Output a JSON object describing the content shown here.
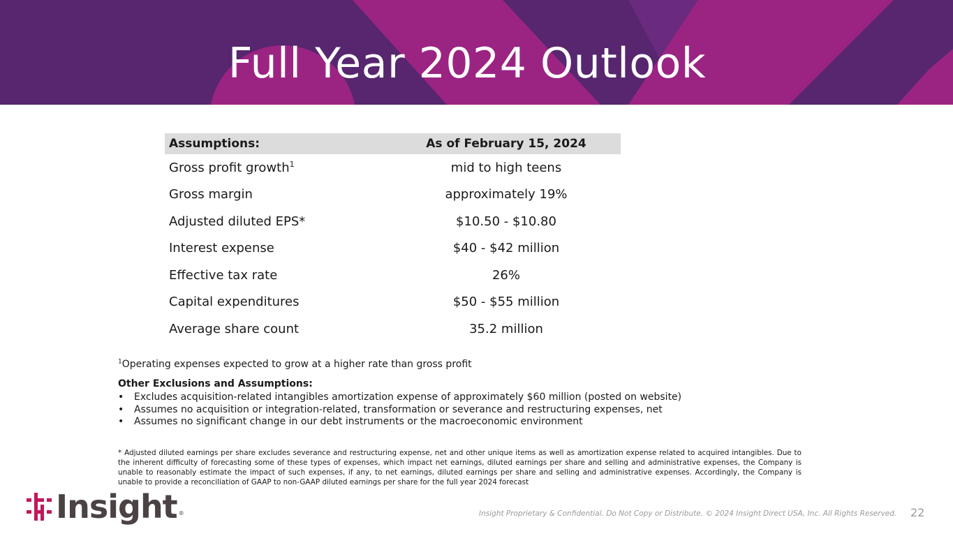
{
  "slide": {
    "title": "Full Year 2024 Outlook",
    "colors": {
      "banner": "#57266f",
      "accent": "#9b2483",
      "logo_mark": "#c2185b",
      "table_header": "#dcdcdc"
    }
  },
  "table": {
    "header": {
      "left": "Assumptions:",
      "right": "As of February 15, 2024"
    },
    "rows": [
      {
        "label": "Gross profit growth",
        "sup": "1",
        "value": "mid to high teens"
      },
      {
        "label": "Gross margin",
        "value": "approximately 19%"
      },
      {
        "label": "Adjusted diluted EPS*",
        "value": "$10.50 - $10.80"
      },
      {
        "label": "Interest expense",
        "value": "$40 - $42 million"
      },
      {
        "label": "Effective tax rate",
        "value": "26%"
      },
      {
        "label": "Capital expenditures",
        "value": "$50 - $55 million"
      },
      {
        "label": "Average share count",
        "value": "35.2 million"
      }
    ]
  },
  "footnote1": {
    "sup": "1",
    "text": "Operating expenses expected to grow at a higher rate than gross profit"
  },
  "other": {
    "heading": "Other Exclusions and Assumptions:",
    "bullet_char": "•",
    "bullets": [
      "Excludes acquisition-related intangibles amortization expense of approximately $60 million (posted on website)",
      "Assumes no acquisition or integration-related, transformation or severance and restructuring expenses, net",
      "Assumes no significant change in our debt instruments or the macroeconomic environment"
    ]
  },
  "disclaimer": "* Adjusted diluted earnings per share excludes severance and restructuring expense, net and other unique items as well as amortization expense related to acquired intangibles. Due to the inherent difficulty of forecasting some of these types of expenses, which impact net earnings, diluted earnings per share and selling and administrative expenses, the Company is unable to reasonably estimate the impact of such expenses, if any, to net earnings, diluted earnings per share and selling and administrative expenses. Accordingly, the Company is unable to provide a reconciliation of GAAP to non-GAAP diluted earnings per share for the full year 2024 forecast",
  "footer": {
    "logo_text": "Insight",
    "logo_reg": "®",
    "confidential": "Insight Proprietary & Confidential. Do Not Copy or Distribute. © 2024 Insight Direct USA, Inc. All Rights Reserved.",
    "page_number": "22"
  }
}
